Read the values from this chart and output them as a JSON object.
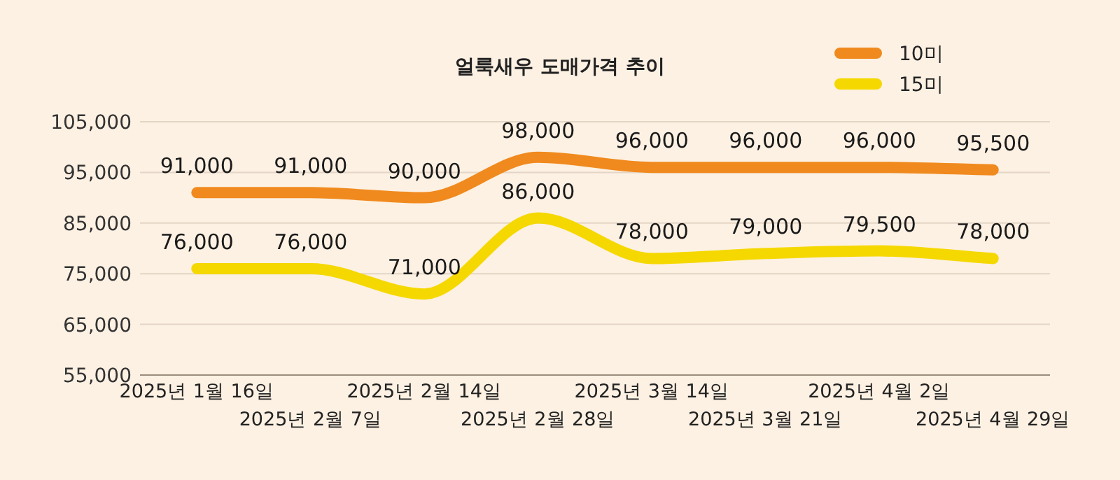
{
  "chart_data": {
    "type": "line",
    "title": "얼룩새우 도매가격 추이",
    "categories": [
      "2025년 1월 16일",
      "2025년 2월 7일",
      "2025년 2월 14일",
      "2025년 2월 28일",
      "2025년 3월 14일",
      "2025년 3월 21일",
      "2025년 4월 2일",
      "2025년 4월 29일"
    ],
    "series": [
      {
        "name": "10미",
        "color": "#f08a1e",
        "values": [
          91000,
          91000,
          90000,
          98000,
          96000,
          96000,
          96000,
          95500
        ],
        "value_labels": [
          "91,000",
          "91,000",
          "90,000",
          "98,000",
          "96,000",
          "96,000",
          "96,000",
          "95,500"
        ]
      },
      {
        "name": "15미",
        "color": "#f5d800",
        "values": [
          76000,
          76000,
          71000,
          86000,
          78000,
          79000,
          79500,
          78000
        ],
        "value_labels": [
          "76,000",
          "76,000",
          "71,000",
          "86,000",
          "78,000",
          "79,000",
          "79,500",
          "78,000"
        ]
      }
    ],
    "ylim": [
      55000,
      105000
    ],
    "yticks": [
      {
        "value": 55000,
        "label": "55,000"
      },
      {
        "value": 65000,
        "label": "65,000"
      },
      {
        "value": 75000,
        "label": "75,000"
      },
      {
        "value": 85000,
        "label": "85,000"
      },
      {
        "value": 95000,
        "label": "95,000"
      },
      {
        "value": 105000,
        "label": "105,000"
      }
    ],
    "grid": "y",
    "legend": "top right",
    "marker": "none",
    "line_style": "solid"
  }
}
